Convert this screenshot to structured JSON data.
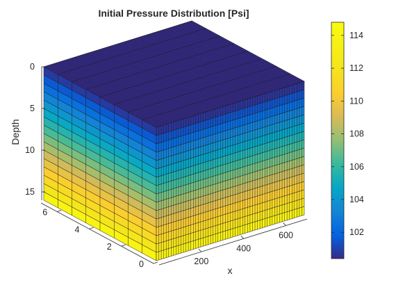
{
  "chart_data": {
    "type": "3d-box",
    "title": "Initial Pressure Distribution [Psi]",
    "ylabel": "Depth",
    "xlabel": "x",
    "colormap": "parula",
    "depth_axis": {
      "range": [
        0,
        16
      ],
      "ticks": [
        0,
        5,
        10,
        15
      ],
      "reversed": true
    },
    "x_axis": {
      "range": [
        0,
        700
      ],
      "ticks": [
        200,
        400,
        600
      ]
    },
    "y_axis": {
      "range": [
        0,
        7
      ],
      "ticks": [
        0,
        2,
        4,
        6
      ]
    },
    "grid": {
      "nx": 60,
      "ny": 8,
      "nz": 16
    },
    "pressure_top": 100.4,
    "pressure_bottom": 114.7,
    "colorbar": {
      "range": [
        100.4,
        114.8
      ],
      "ticks": [
        102,
        104,
        106,
        108,
        110,
        112,
        114
      ]
    },
    "colors": {
      "edge": "#1a1a1a",
      "text": "#262626"
    }
  }
}
